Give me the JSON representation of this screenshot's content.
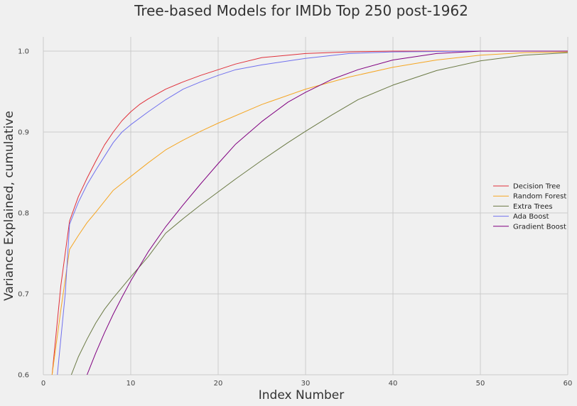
{
  "chart_data": {
    "type": "line",
    "title": "Tree-based Models for IMDb Top 250 post-1962",
    "xlabel": "Index Number",
    "ylabel": "Variance Explained, cumulative",
    "xlim": [
      0,
      60
    ],
    "ylim": [
      0.6,
      1.0
    ],
    "xticks": [
      "0",
      "10",
      "20",
      "30",
      "40",
      "50",
      "60"
    ],
    "yticks": [
      "0.6",
      "0.7",
      "0.8",
      "0.9",
      "1.0"
    ],
    "grid": true,
    "legend_position": "center-right",
    "series": [
      {
        "name": "Decision Tree",
        "color": "#e0303a",
        "x": [
          1,
          2,
          3,
          4,
          5,
          6,
          7,
          8,
          9,
          10,
          11,
          12,
          14,
          16,
          18,
          20,
          22,
          25,
          28,
          30,
          35,
          40,
          50,
          60
        ],
        "y": [
          0.6,
          0.71,
          0.79,
          0.82,
          0.843,
          0.864,
          0.884,
          0.9,
          0.914,
          0.925,
          0.934,
          0.941,
          0.953,
          0.962,
          0.97,
          0.977,
          0.984,
          0.992,
          0.995,
          0.997,
          0.999,
          1.0,
          1.0,
          1.0
        ]
      },
      {
        "name": "Random Forest",
        "color": "#f5a623",
        "x": [
          1,
          2,
          3,
          4,
          5,
          6,
          8,
          10,
          12,
          14,
          16,
          18,
          20,
          25,
          30,
          35,
          40,
          45,
          50,
          55,
          60
        ],
        "y": [
          0.6,
          0.68,
          0.755,
          0.772,
          0.788,
          0.801,
          0.828,
          0.845,
          0.862,
          0.878,
          0.89,
          0.901,
          0.911,
          0.934,
          0.953,
          0.968,
          0.98,
          0.989,
          0.995,
          0.998,
          0.999
        ]
      },
      {
        "name": "Extra Trees",
        "color": "#6b7a45",
        "x": [
          3.2,
          4,
          5,
          6,
          7,
          8,
          9,
          10,
          12,
          14,
          16,
          18,
          20,
          22,
          25,
          28,
          30,
          33,
          36,
          40,
          45,
          50,
          55,
          60
        ],
        "y": [
          0.6,
          0.622,
          0.644,
          0.664,
          0.681,
          0.695,
          0.708,
          0.721,
          0.746,
          0.775,
          0.793,
          0.81,
          0.826,
          0.842,
          0.865,
          0.887,
          0.901,
          0.921,
          0.94,
          0.958,
          0.976,
          0.988,
          0.995,
          0.998
        ]
      },
      {
        "name": "Ada Boost",
        "color": "#7070ee",
        "x": [
          1.6,
          2.5,
          3,
          4,
          5,
          6,
          7,
          8,
          9,
          10,
          12,
          14,
          16,
          18,
          20,
          22,
          25,
          30,
          35,
          40,
          50,
          60
        ],
        "y": [
          0.6,
          0.7,
          0.786,
          0.813,
          0.835,
          0.853,
          0.87,
          0.887,
          0.9,
          0.909,
          0.925,
          0.94,
          0.953,
          0.962,
          0.97,
          0.977,
          0.983,
          0.991,
          0.997,
          0.999,
          1.0,
          1.0
        ]
      },
      {
        "name": "Gradient Boost",
        "color": "#800080",
        "x": [
          5,
          6,
          7,
          8,
          9,
          10,
          12,
          14,
          16,
          18,
          20,
          22,
          25,
          28,
          30,
          33,
          36,
          40,
          45,
          50,
          55,
          60
        ],
        "y": [
          0.6,
          0.627,
          0.652,
          0.675,
          0.696,
          0.716,
          0.752,
          0.783,
          0.81,
          0.836,
          0.861,
          0.885,
          0.913,
          0.937,
          0.949,
          0.965,
          0.977,
          0.989,
          0.997,
          1.0,
          1.0,
          1.0
        ]
      }
    ]
  }
}
